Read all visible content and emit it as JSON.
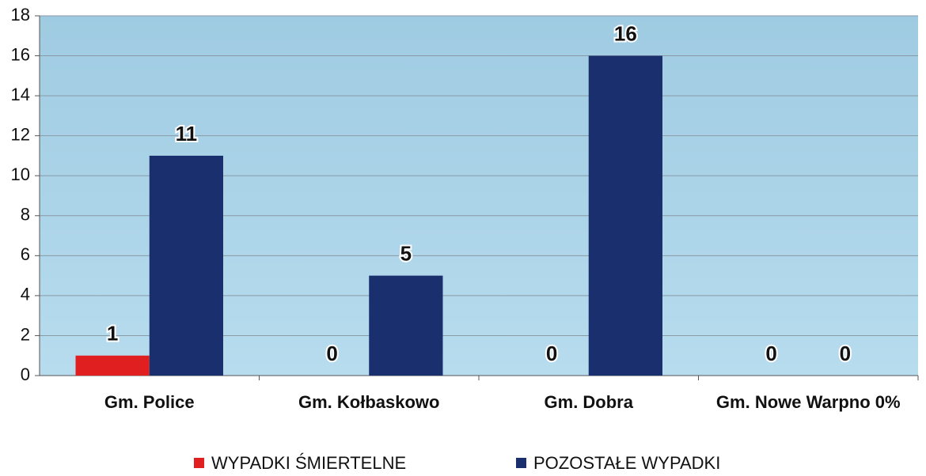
{
  "chart_data": {
    "type": "bar",
    "categories": [
      "Gm. Police",
      "Gm. Kołbaskowo",
      "Gm. Dobra",
      "Gm. Nowe Warpno 0%"
    ],
    "series": [
      {
        "name": "WYPADKI ŚMIERTELNE",
        "color": "#e02020",
        "values": [
          1,
          0,
          0,
          0
        ]
      },
      {
        "name": "POZOSTAŁE WYPADKI",
        "color": "#1a2f6e",
        "values": [
          11,
          5,
          16,
          0
        ]
      }
    ],
    "ylim": [
      0,
      18
    ],
    "yticks": [
      0,
      2,
      4,
      6,
      8,
      10,
      12,
      14,
      16,
      18
    ],
    "grid": true,
    "legend": "bottom"
  }
}
